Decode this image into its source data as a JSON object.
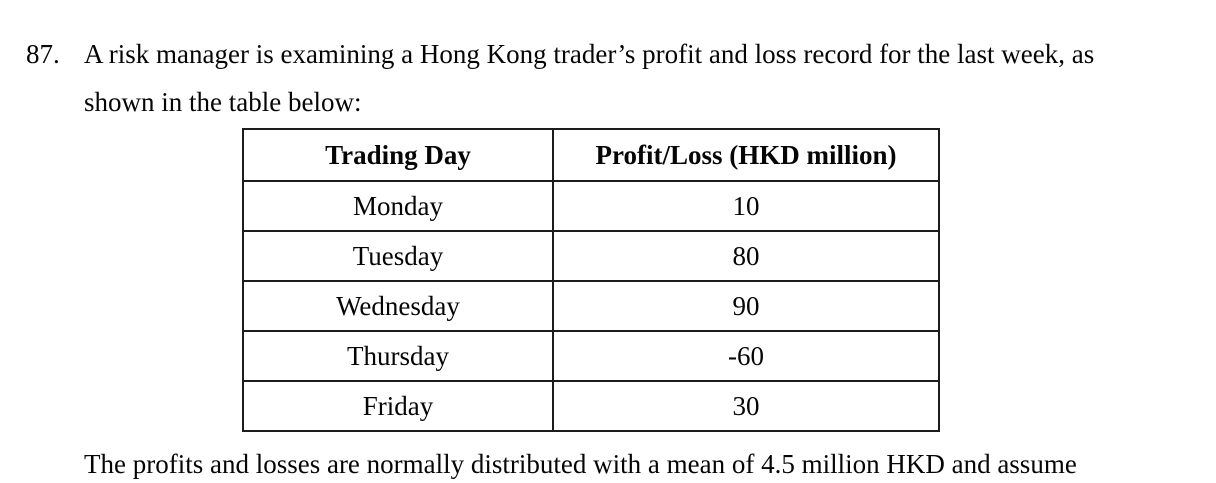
{
  "question": {
    "number": "87.",
    "lines": [
      "A risk manager is examining a Hong Kong trader’s profit and loss record for the last week, as",
      "shown in the table below:"
    ]
  },
  "table": {
    "headers": [
      "Trading Day",
      "Profit/Loss (HKD million)"
    ],
    "rows": [
      [
        "Monday",
        "10"
      ],
      [
        "Tuesday",
        "80"
      ],
      [
        "Wednesday",
        "90"
      ],
      [
        "Thursday",
        "-60"
      ],
      [
        "Friday",
        "30"
      ]
    ]
  },
  "footer": {
    "text": "The profits and losses are normally distributed with a mean of 4.5 million HKD and assume"
  },
  "colors": {
    "background": "#ffffff",
    "text": "#050505",
    "table_border": "#1c1c1c"
  }
}
